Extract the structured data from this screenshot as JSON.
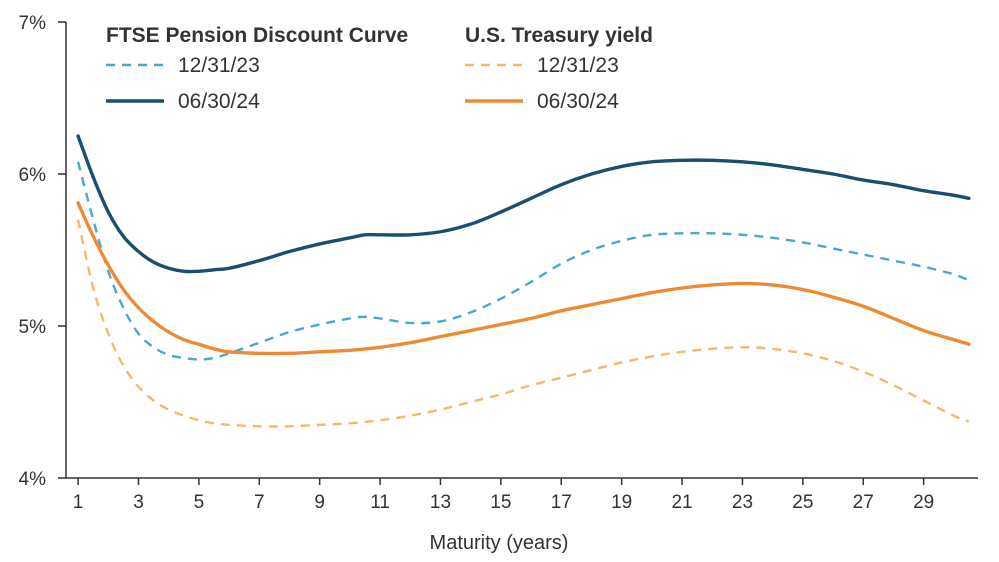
{
  "chart_data": {
    "type": "line",
    "title": "",
    "xlabel": "Maturity (years)",
    "ylabel": "",
    "xlim": [
      0.6,
      30.8
    ],
    "ylim": [
      4,
      7
    ],
    "x_ticks": [
      1,
      3,
      5,
      7,
      9,
      11,
      13,
      15,
      17,
      19,
      21,
      23,
      25,
      27,
      29
    ],
    "x_tick_labels": [
      "1",
      "3",
      "5",
      "7",
      "9",
      "11",
      "13",
      "15",
      "17",
      "19",
      "21",
      "23",
      "25",
      "27",
      "29"
    ],
    "y_ticks": [
      4,
      5,
      6,
      7
    ],
    "y_tick_labels": [
      "4%",
      "5%",
      "6%",
      "7%"
    ],
    "grid": false,
    "legend_groups": [
      {
        "title": "FTSE Pension Discount Curve",
        "series": [
          "ftse_123123",
          "ftse_063024"
        ]
      },
      {
        "title": "U.S. Treasury yield",
        "series": [
          "ust_123123",
          "ust_063024"
        ]
      }
    ],
    "series": [
      {
        "id": "ftse_123123",
        "name": "12/31/23",
        "group": "FTSE Pension Discount Curve",
        "color": "#4aa8cc",
        "style": "dashed",
        "x": [
          1,
          1.5,
          2,
          2.5,
          3,
          3.5,
          4,
          4.5,
          5,
          5.5,
          6,
          7,
          8,
          9,
          10,
          10.5,
          11,
          12,
          13,
          14,
          15,
          16,
          17,
          18,
          19,
          20,
          21,
          22,
          23,
          24,
          25,
          26,
          27,
          28,
          29,
          30,
          30.5
        ],
        "y": [
          6.08,
          5.7,
          5.36,
          5.12,
          4.95,
          4.86,
          4.81,
          4.79,
          4.78,
          4.79,
          4.82,
          4.89,
          4.96,
          5.01,
          5.05,
          5.06,
          5.05,
          5.02,
          5.03,
          5.09,
          5.18,
          5.29,
          5.41,
          5.5,
          5.56,
          5.6,
          5.61,
          5.61,
          5.6,
          5.58,
          5.55,
          5.51,
          5.47,
          5.43,
          5.39,
          5.34,
          5.3
        ]
      },
      {
        "id": "ftse_063024",
        "name": "06/30/24",
        "group": "FTSE Pension Discount Curve",
        "color": "#1c4f6f",
        "style": "solid",
        "x": [
          1,
          1.5,
          2,
          2.5,
          3,
          3.5,
          4,
          4.5,
          5,
          5.5,
          6,
          7,
          8,
          9,
          10,
          10.5,
          11,
          12,
          13,
          14,
          15,
          16,
          17,
          18,
          19,
          20,
          21,
          22,
          23,
          24,
          25,
          26,
          27,
          28,
          29,
          30,
          30.5
        ],
        "y": [
          6.25,
          5.98,
          5.75,
          5.59,
          5.49,
          5.42,
          5.38,
          5.36,
          5.36,
          5.37,
          5.38,
          5.43,
          5.49,
          5.54,
          5.58,
          5.6,
          5.6,
          5.6,
          5.62,
          5.67,
          5.75,
          5.84,
          5.93,
          6.0,
          6.05,
          6.08,
          6.09,
          6.09,
          6.08,
          6.06,
          6.03,
          6.0,
          5.96,
          5.93,
          5.89,
          5.86,
          5.84
        ]
      },
      {
        "id": "ust_123123",
        "name": "12/31/23",
        "group": "U.S. Treasury yield",
        "color": "#f5b86b",
        "style": "dashed",
        "x": [
          1,
          1.5,
          2,
          2.5,
          3,
          3.5,
          4,
          4.5,
          5,
          5.5,
          6,
          7,
          8,
          9,
          10,
          11,
          12,
          13,
          14,
          15,
          16,
          17,
          18,
          19,
          20,
          21,
          22,
          23,
          24,
          25,
          26,
          27,
          28,
          29,
          30,
          30.5
        ],
        "y": [
          5.7,
          5.25,
          4.95,
          4.74,
          4.6,
          4.51,
          4.45,
          4.41,
          4.38,
          4.36,
          4.35,
          4.34,
          4.34,
          4.35,
          4.36,
          4.38,
          4.41,
          4.45,
          4.5,
          4.55,
          4.61,
          4.66,
          4.71,
          4.76,
          4.8,
          4.83,
          4.85,
          4.86,
          4.85,
          4.82,
          4.77,
          4.7,
          4.61,
          4.51,
          4.41,
          4.37
        ]
      },
      {
        "id": "ust_063024",
        "name": "06/30/24",
        "group": "U.S. Treasury yield",
        "color": "#ee8a34",
        "style": "solid",
        "x": [
          1,
          1.5,
          2,
          2.5,
          3,
          3.5,
          4,
          4.5,
          5,
          5.5,
          6,
          7,
          8,
          9,
          10,
          11,
          12,
          13,
          14,
          15,
          16,
          17,
          18,
          19,
          20,
          21,
          22,
          23,
          24,
          25,
          26,
          27,
          28,
          29,
          30,
          30.5
        ],
        "y": [
          5.81,
          5.59,
          5.4,
          5.24,
          5.12,
          5.03,
          4.96,
          4.91,
          4.88,
          4.85,
          4.83,
          4.82,
          4.82,
          4.83,
          4.84,
          4.86,
          4.89,
          4.93,
          4.97,
          5.01,
          5.05,
          5.1,
          5.14,
          5.18,
          5.22,
          5.25,
          5.27,
          5.28,
          5.27,
          5.24,
          5.19,
          5.13,
          5.05,
          4.97,
          4.91,
          4.88
        ]
      }
    ],
    "axis_color": "#333333"
  }
}
